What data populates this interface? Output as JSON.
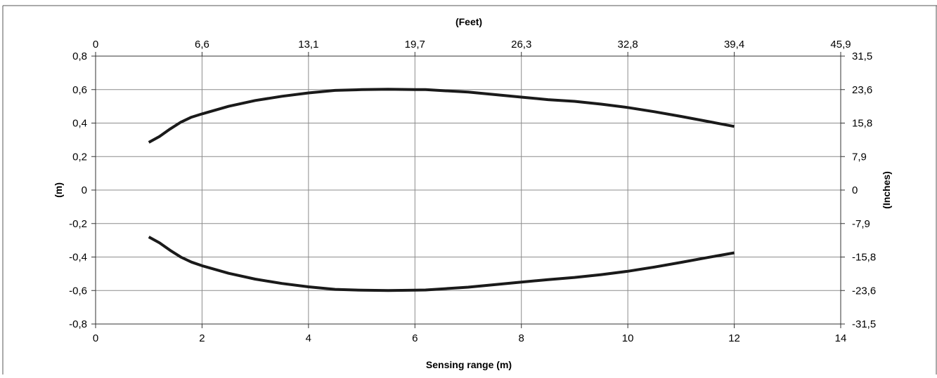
{
  "chart_data": {
    "type": "line",
    "title": "",
    "xlabel": "Sensing range (m)",
    "ylabel": "(m)",
    "x_top_label": "(Feet)",
    "y_right_label": "(Inches)",
    "xlim": [
      0,
      14
    ],
    "ylim": [
      -0.8,
      0.8
    ],
    "x_ticks": [
      "0",
      "2",
      "4",
      "6",
      "8",
      "10",
      "12",
      "14"
    ],
    "y_ticks": [
      "0,8",
      "0,6",
      "0,4",
      "0,2",
      "0",
      "-0,2",
      "-0,4",
      "-0,6",
      "-0,8"
    ],
    "x_top_ticks": [
      "0",
      "6,6",
      "13,1",
      "19,7",
      "26,3",
      "32,8",
      "39,4",
      "45,9"
    ],
    "y_right_ticks": [
      "31,5",
      "23,6",
      "15,8",
      "7,9",
      "0",
      "-7,9",
      "-15,8",
      "-23,6",
      "-31,5"
    ],
    "grid": true,
    "line_color": "#1a1a1a",
    "grid_color": "#8c8c8c",
    "series": [
      {
        "x": [
          1.0,
          1.2,
          1.4,
          1.6,
          1.8,
          2.0,
          2.5,
          3.0,
          3.5,
          4.0,
          4.5,
          5.0,
          5.5,
          6.0,
          6.2,
          7.0,
          7.5,
          8.0,
          8.5,
          9.0,
          9.5,
          10.0,
          10.5,
          11.0,
          11.5,
          12.0
        ],
        "y": [
          0.285,
          0.32,
          0.365,
          0.405,
          0.435,
          0.455,
          0.5,
          0.535,
          0.56,
          0.58,
          0.595,
          0.6,
          0.602,
          0.6,
          0.6,
          0.585,
          0.57,
          0.555,
          0.54,
          0.53,
          0.513,
          0.493,
          0.468,
          0.44,
          0.41,
          0.38
        ]
      },
      {
        "x": [
          1.0,
          1.2,
          1.4,
          1.6,
          1.8,
          2.0,
          2.5,
          3.0,
          3.5,
          4.0,
          4.5,
          5.0,
          5.5,
          6.0,
          6.2,
          7.0,
          7.5,
          8.0,
          8.5,
          9.0,
          9.5,
          10.0,
          10.5,
          11.0,
          11.5,
          12.0
        ],
        "y": [
          -0.28,
          -0.315,
          -0.36,
          -0.4,
          -0.43,
          -0.452,
          -0.497,
          -0.532,
          -0.558,
          -0.578,
          -0.593,
          -0.598,
          -0.6,
          -0.598,
          -0.597,
          -0.58,
          -0.565,
          -0.55,
          -0.535,
          -0.522,
          -0.505,
          -0.485,
          -0.46,
          -0.432,
          -0.403,
          -0.375
        ]
      }
    ]
  }
}
